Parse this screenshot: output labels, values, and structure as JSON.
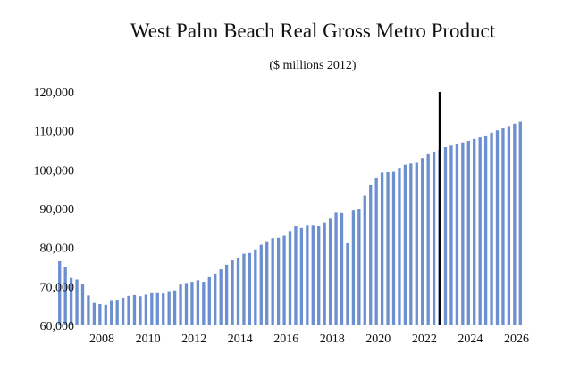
{
  "chart_data": {
    "type": "bar",
    "title": "West Palm Beach Real Gross Metro Product",
    "subtitle": "($ millions 2012)",
    "xlabel": "",
    "ylabel": "",
    "ylim": [
      60000,
      120000
    ],
    "yticks": [
      "60,000",
      "70,000",
      "80,000",
      "90,000",
      "100,000",
      "110,000",
      "120,000"
    ],
    "ytick_values": [
      60000,
      70000,
      80000,
      90000,
      100000,
      110000,
      120000
    ],
    "xticks": [
      "2008",
      "2010",
      "2012",
      "2014",
      "2016",
      "2018",
      "2020",
      "2022",
      "2024",
      "2026"
    ],
    "xtick_values": [
      2008,
      2010,
      2012,
      2014,
      2016,
      2018,
      2020,
      2022,
      2024,
      2026
    ],
    "x_start": 2007.0,
    "x_step": 0.25,
    "forecast_line_x": 2023.5,
    "bar_color": "#6b8fcf",
    "line_color": "#000000",
    "values": [
      76500,
      75000,
      72200,
      71800,
      70700,
      67700,
      65800,
      65500,
      65300,
      66300,
      66600,
      67100,
      67600,
      67800,
      67500,
      67900,
      68300,
      68300,
      68200,
      68800,
      69000,
      70500,
      70900,
      71200,
      71600,
      71200,
      72400,
      73300,
      74400,
      75600,
      76700,
      77400,
      78400,
      78600,
      79500,
      80700,
      81600,
      82400,
      82500,
      83000,
      84200,
      85600,
      85000,
      85800,
      85800,
      85500,
      86400,
      87400,
      89000,
      88900,
      81100,
      89500,
      90000,
      93300,
      96100,
      97800,
      99300,
      99400,
      99500,
      100500,
      101300,
      101600,
      101800,
      103000,
      104000,
      104500,
      105100,
      105800,
      106200,
      106600,
      107000,
      107400,
      107900,
      108300,
      108800,
      109500,
      110100,
      110600,
      111200,
      111800,
      112300
    ]
  }
}
